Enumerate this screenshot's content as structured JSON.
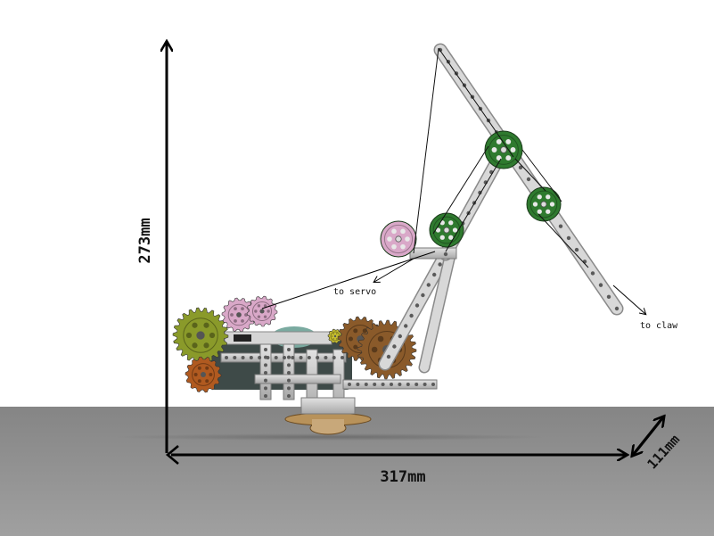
{
  "dimensions": {
    "height": "273mm",
    "length": "317mm",
    "depth": "111mm"
  },
  "annotations": {
    "servo": "to servo",
    "claw": "to claw"
  },
  "colors": {
    "floor_top": "#8a8a8a",
    "floor_bottom": "#9d9d9d",
    "beam": "#c9c9c9",
    "gear_green": "#2f7a2f",
    "gear_pink": "#d9a8c8",
    "gear_bronze": "#8a5a2a",
    "gear_olive": "#8a9a2a",
    "gear_orange": "#b05a20",
    "motor_dark": "#3e4a48",
    "motor_teal": "#7aaaa0"
  },
  "icons": [
    "gear-icon",
    "arrow-icon"
  ]
}
